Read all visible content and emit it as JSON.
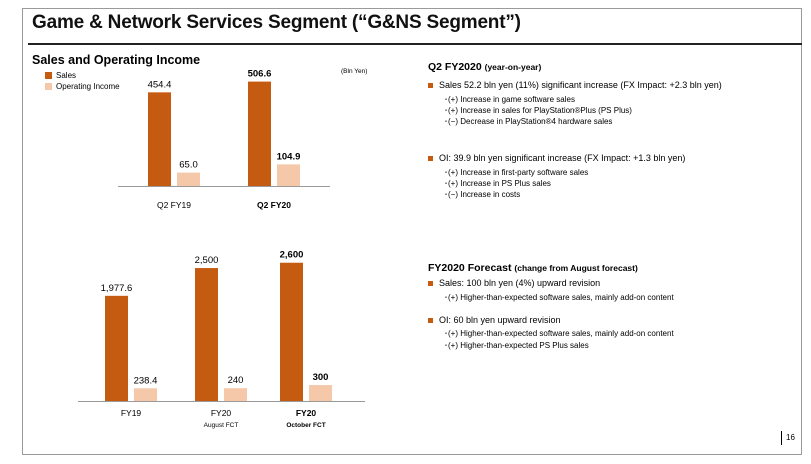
{
  "title": "Game & Network Services Segment (“G&NS Segment”)",
  "subtitle": "Sales and Operating Income",
  "unit": "(Bln Yen)",
  "page_number": "16",
  "colors": {
    "sales": "#c55a11",
    "operating_income": "#f4c8a8",
    "accent": "#c55a11"
  },
  "legend": {
    "sales": "Sales",
    "oi": "Operating Income"
  },
  "chart_data": [
    {
      "type": "bar",
      "categories": [
        "Q2 FY19",
        "Q2 FY20"
      ],
      "category_bold": [
        false,
        true
      ],
      "series": [
        {
          "name": "Sales",
          "values": [
            454.4,
            506.6
          ],
          "labels": [
            "454.4",
            "506.6"
          ],
          "bold": [
            false,
            true
          ]
        },
        {
          "name": "Operating Income",
          "values": [
            65.0,
            104.9
          ],
          "labels": [
            "65.0",
            "104.9"
          ],
          "bold": [
            false,
            true
          ]
        }
      ],
      "ylim": [
        0,
        620
      ]
    },
    {
      "type": "bar",
      "categories": [
        "FY19",
        "FY20",
        "FY20"
      ],
      "category_sublabels": [
        "",
        "August FCT",
        "October FCT"
      ],
      "category_bold": [
        false,
        false,
        true
      ],
      "series": [
        {
          "name": "Sales",
          "values": [
            1977.6,
            2500,
            2600
          ],
          "labels": [
            "1,977.6",
            "2,500",
            "2,600"
          ],
          "bold": [
            false,
            false,
            true
          ]
        },
        {
          "name": "Operating Income",
          "values": [
            238.4,
            240,
            300
          ],
          "labels": [
            "238.4",
            "240",
            "300"
          ],
          "bold": [
            false,
            false,
            true
          ]
        }
      ],
      "ylim": [
        0,
        2925
      ]
    }
  ],
  "q2": {
    "heading": "Q2 FY2020",
    "heading_note": "(year-on-year)",
    "sales_line": "Sales  52.2 bln yen (11%) significant increase (FX Impact: +2.3 bln yen)",
    "sales_items": [
      "･(+) Increase in game software sales",
      "･(+) Increase in sales for PlayStation®Plus (PS Plus)",
      "･(−) Decrease in PlayStation®4 hardware sales"
    ],
    "oi_line": "OI: 39.9 bln yen significant increase (FX Impact: +1.3 bln yen)",
    "oi_items": [
      "･(+) Increase in first-party software sales",
      "･(+) Increase in PS Plus sales",
      "･(−) Increase in costs"
    ]
  },
  "forecast": {
    "heading": "FY2020 Forecast",
    "heading_note": "(change from August forecast)",
    "sales_line": "Sales: 100 bln yen (4%) upward revision",
    "sales_items": [
      "･(+) Higher-than-expected software sales, mainly add-on content"
    ],
    "oi_line": "OI: 60 bln yen upward revision",
    "oi_items": [
      "･(+) Higher-than-expected software sales, mainly add-on content",
      "･(+) Higher-than-expected PS Plus sales"
    ]
  }
}
